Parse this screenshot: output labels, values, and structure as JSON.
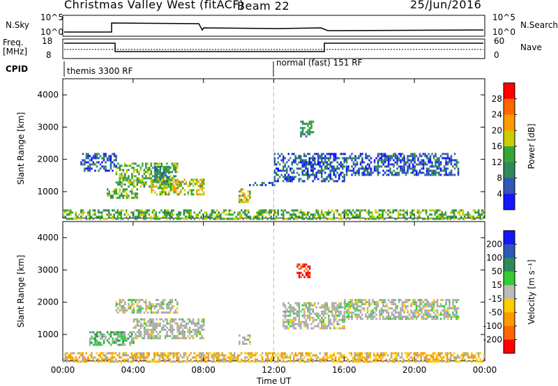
{
  "header": {
    "title": "Christmas Valley West (fitACF)",
    "beam": "Beam 22",
    "date": "25/Jun/2016"
  },
  "colors": {
    "power_scale": [
      "#1515ff",
      "#2e57b8",
      "#2e8a5a",
      "#33a833",
      "#cccc00",
      "#ff9900",
      "#ff6600",
      "#ff0000"
    ],
    "velocity_scale": [
      "#1515ff",
      "#2e57b8",
      "#2e8a5a",
      "#33cc33",
      "#bbbbbb",
      "#ffcc00",
      "#ff9900",
      "#ff6600",
      "#ff0000"
    ],
    "ground_scatter": "#aaaaaa"
  },
  "strips": {
    "nsky_label": "N.Sky",
    "nsearch_label": "N.Search",
    "nsky_ticks": [
      "10^5",
      "10^0"
    ],
    "nsearch_ticks": [
      "10^5",
      "10^0"
    ],
    "freq_label_1": "Freq.",
    "freq_label_2": "[MHz]",
    "freq_ticks": [
      "18",
      "8"
    ],
    "nave_label": "Nave",
    "nave_ticks": [
      "60",
      "0"
    ],
    "cpid_label": "CPID",
    "cpid_segments": [
      {
        "label": "themis 3300 RF",
        "start_hour": 0
      },
      {
        "label": "normal (fast) 151 RF",
        "start_hour": 12
      }
    ]
  },
  "chart_data": [
    {
      "type": "heatmap",
      "title": "",
      "xlabel": "",
      "ylabel": "Slant Range [km]",
      "colorbar_label": "Power [dB]",
      "colorbar_ticks": [
        "4",
        "8",
        "12",
        "16",
        "20",
        "24",
        "28"
      ],
      "xlim": [
        0,
        24
      ],
      "ylim": [
        180,
        4500
      ],
      "x_ticks": [
        0,
        4,
        8,
        12,
        16,
        20,
        24
      ],
      "y_ticks": [
        "1000",
        "2000",
        "3000",
        "4000"
      ],
      "y_tick_values": [
        1000,
        2000,
        3000,
        4000
      ],
      "patches": [
        {
          "x": [
            3.0,
            6.5
          ],
          "y": [
            1150,
            1900
          ],
          "level": 3
        },
        {
          "x": [
            5.0,
            8.0
          ],
          "y": [
            900,
            1400
          ],
          "level": 4
        },
        {
          "x": [
            2.5,
            4.2
          ],
          "y": [
            800,
            1100
          ],
          "level": 3
        },
        {
          "x": [
            1.0,
            3.0
          ],
          "y": [
            1650,
            2200
          ],
          "level": 1
        },
        {
          "x": [
            5.2,
            6.0
          ],
          "y": [
            1300,
            1800
          ],
          "level": 2
        },
        {
          "x": [
            10.0,
            10.6
          ],
          "y": [
            700,
            1100
          ],
          "level": 4
        },
        {
          "x": [
            10.6,
            12.0
          ],
          "y": [
            1200,
            1300
          ],
          "level": 1
        },
        {
          "x": [
            12.0,
            16.0
          ],
          "y": [
            1300,
            2200
          ],
          "level": 1
        },
        {
          "x": [
            13.5,
            14.2
          ],
          "y": [
            2700,
            3200
          ],
          "level": 2
        },
        {
          "x": [
            16.0,
            22.5
          ],
          "y": [
            1500,
            2200
          ],
          "level": 1
        },
        {
          "x": [
            0.0,
            24.0
          ],
          "y": [
            180,
            450
          ],
          "level": 3
        }
      ]
    },
    {
      "type": "heatmap",
      "title": "",
      "xlabel": "Time UT",
      "ylabel": "Slant Range [km]",
      "colorbar_label": "Velocity [m s⁻¹]",
      "colorbar_ticks": [
        "200",
        "100",
        "50",
        "15",
        "-15",
        "-50",
        "-100",
        "-200"
      ],
      "xlim": [
        0,
        24
      ],
      "ylim": [
        180,
        4500
      ],
      "x_ticks": [
        "00:00",
        "04:00",
        "08:00",
        "12:00",
        "16:00",
        "20:00",
        "00:00"
      ],
      "y_ticks": [
        "1000",
        "2000",
        "3000",
        "4000"
      ],
      "y_tick_values": [
        1000,
        2000,
        3000,
        4000
      ],
      "patches": [
        {
          "x": [
            3.0,
            6.5
          ],
          "y": [
            1700,
            2100
          ],
          "level": 4
        },
        {
          "x": [
            4.0,
            8.0
          ],
          "y": [
            900,
            1500
          ],
          "level": 4
        },
        {
          "x": [
            1.5,
            4.0
          ],
          "y": [
            700,
            1100
          ],
          "level": 3
        },
        {
          "x": [
            10.0,
            10.6
          ],
          "y": [
            700,
            1000
          ],
          "level": 4
        },
        {
          "x": [
            13.3,
            14.0
          ],
          "y": [
            2800,
            3200
          ],
          "level": 8
        },
        {
          "x": [
            12.5,
            16.0
          ],
          "y": [
            1200,
            2000
          ],
          "level": 4
        },
        {
          "x": [
            16.0,
            22.5
          ],
          "y": [
            1500,
            2100
          ],
          "level": 4
        },
        {
          "x": [
            0.0,
            24.0
          ],
          "y": [
            180,
            450
          ],
          "level": 5
        }
      ]
    }
  ]
}
